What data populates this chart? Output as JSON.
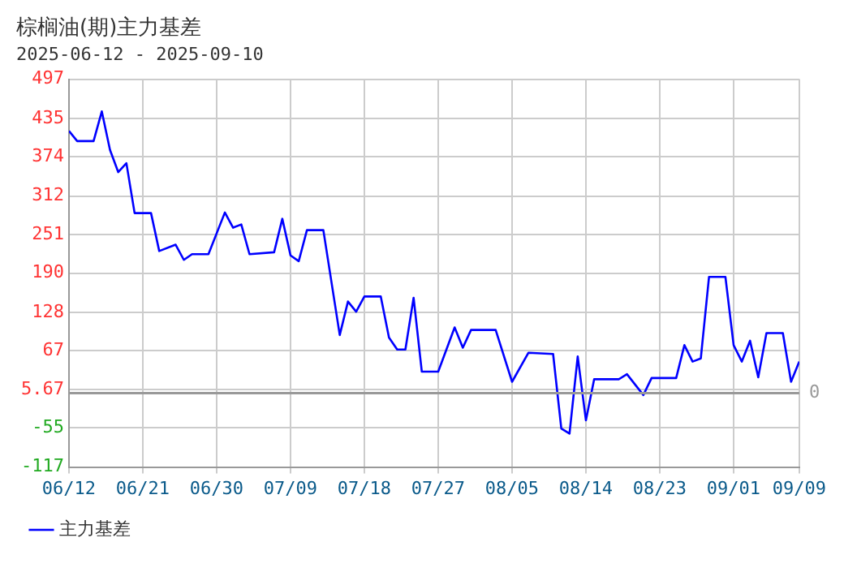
{
  "chart_data": {
    "type": "line",
    "title": "棕榈油(期)主力基差",
    "subtitle": "2025-06-12 - 2025-09-10",
    "x": [
      "2025-06-12",
      "2025-06-13",
      "2025-06-15",
      "2025-06-16",
      "2025-06-17",
      "2025-06-18",
      "2025-06-19",
      "2025-06-20",
      "2025-06-22",
      "2025-06-23",
      "2025-06-25",
      "2025-06-26",
      "2025-06-27",
      "2025-06-29",
      "2025-07-01",
      "2025-07-02",
      "2025-07-03",
      "2025-07-04",
      "2025-07-07",
      "2025-07-08",
      "2025-07-09",
      "2025-07-10",
      "2025-07-11",
      "2025-07-13",
      "2025-07-15",
      "2025-07-16",
      "2025-07-17",
      "2025-07-18",
      "2025-07-20",
      "2025-07-21",
      "2025-07-22",
      "2025-07-23",
      "2025-07-24",
      "2025-07-25",
      "2025-07-27",
      "2025-07-29",
      "2025-07-30",
      "2025-07-31",
      "2025-08-03",
      "2025-08-05",
      "2025-08-07",
      "2025-08-10",
      "2025-08-11",
      "2025-08-12",
      "2025-08-13",
      "2025-08-14",
      "2025-08-15",
      "2025-08-18",
      "2025-08-19",
      "2025-08-21",
      "2025-08-22",
      "2025-08-25",
      "2025-08-26",
      "2025-08-27",
      "2025-08-28",
      "2025-08-29",
      "2025-08-31",
      "2025-09-01",
      "2025-09-02",
      "2025-09-03",
      "2025-09-04",
      "2025-09-05",
      "2025-09-07",
      "2025-09-08",
      "2025-09-09"
    ],
    "series": [
      {
        "name": "主力基差",
        "color": "#0000ff",
        "values": [
          415,
          399,
          399,
          446,
          385,
          350,
          364,
          285,
          285,
          225,
          235,
          211,
          220,
          220,
          286,
          262,
          267,
          220,
          223,
          276,
          218,
          209,
          258,
          258,
          92,
          145,
          129,
          153,
          153,
          88,
          69,
          69,
          151,
          34,
          34,
          104,
          72,
          100,
          100,
          18,
          64,
          62,
          -56,
          -64,
          58,
          -43,
          22,
          22,
          30,
          -3,
          24,
          24,
          76,
          50,
          55,
          184,
          184,
          76,
          50,
          83,
          25,
          95,
          95,
          18,
          50
        ]
      }
    ],
    "xlim": [
      "2025-06-12",
      "2025-09-09"
    ],
    "xticks": [
      {
        "value": "2025-06-12",
        "label": "06/12"
      },
      {
        "value": "2025-06-21",
        "label": "06/21"
      },
      {
        "value": "2025-06-30",
        "label": "06/30"
      },
      {
        "value": "2025-07-09",
        "label": "07/09"
      },
      {
        "value": "2025-07-18",
        "label": "07/18"
      },
      {
        "value": "2025-07-27",
        "label": "07/27"
      },
      {
        "value": "2025-08-05",
        "label": "08/05"
      },
      {
        "value": "2025-08-14",
        "label": "08/14"
      },
      {
        "value": "2025-08-23",
        "label": "08/23"
      },
      {
        "value": "2025-09-01",
        "label": "09/01"
      },
      {
        "value": "2025-09-09",
        "label": "09/09"
      }
    ],
    "ylim": [
      -117,
      497
    ],
    "yticks": [
      -117,
      -55,
      5.67,
      67,
      128,
      190,
      251,
      312,
      374,
      435,
      497
    ],
    "ref_lines": [
      {
        "axis": "y",
        "value": 0,
        "label": "0",
        "color": "#999999",
        "line_style": "solid"
      }
    ],
    "grid": true,
    "legend": "bottom left",
    "marker": "none",
    "line_style": "solid"
  }
}
